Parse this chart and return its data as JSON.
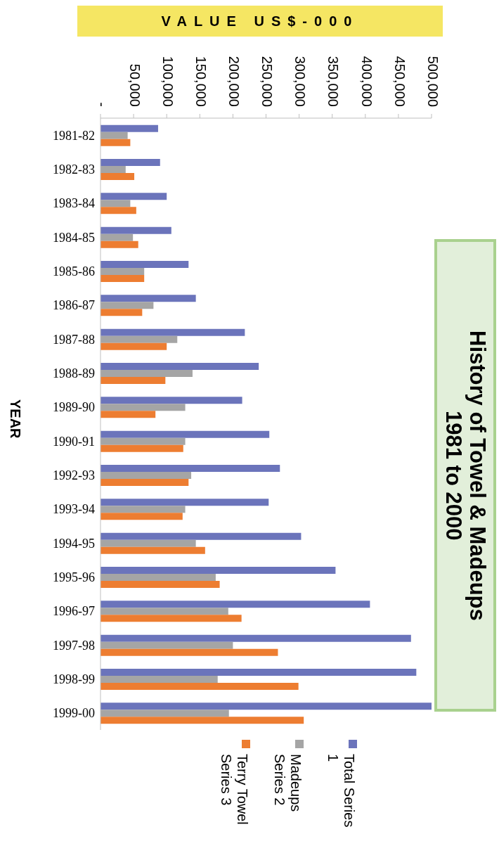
{
  "chart_data": {
    "type": "bar",
    "orientation": "horizontal",
    "title": "History of Towel & Madeups\n1981 to 2000",
    "xlabel": "VALUE US$-000",
    "ylabel": "YEAR",
    "categories": [
      "1981-82",
      "1982-83",
      "1983-84",
      "1984-85",
      "1985-86",
      "1986-87",
      "1987-88",
      "1988-89",
      "1989-90",
      "1990-91",
      "1992-93",
      "1993-94",
      "1994-95",
      "1995-96",
      "1996-97",
      "1997-98",
      "1998-99",
      "1999-00"
    ],
    "series": [
      {
        "name": "Total Series 1",
        "color": "#6b74bb",
        "values": [
          87000,
          90000,
          100000,
          107000,
          133000,
          144000,
          218000,
          239000,
          214000,
          255000,
          271000,
          254000,
          303000,
          355000,
          407000,
          469000,
          477000,
          500000
        ]
      },
      {
        "name": "Madeups Series 2",
        "color": "#a5a5a5",
        "values": [
          41000,
          38000,
          45000,
          49000,
          66000,
          80000,
          116000,
          139000,
          128000,
          128000,
          137000,
          128000,
          144000,
          174000,
          193000,
          200000,
          177000,
          194000
        ]
      },
      {
        "name": "Terry Towel Series 3",
        "color": "#ed7d31",
        "values": [
          45000,
          51000,
          54000,
          57000,
          66000,
          63000,
          100000,
          98000,
          83000,
          125000,
          133000,
          124000,
          158000,
          180000,
          213000,
          268000,
          299000,
          307000
        ]
      }
    ],
    "xlim": [
      0,
      500000
    ],
    "xticks": [
      {
        "value": 0,
        "label": "-"
      },
      {
        "value": 50000,
        "label": "50,000"
      },
      {
        "value": 100000,
        "label": "100,000"
      },
      {
        "value": 150000,
        "label": "150,000"
      },
      {
        "value": 200000,
        "label": "200,000"
      },
      {
        "value": 250000,
        "label": "250,000"
      },
      {
        "value": 300000,
        "label": "300,000"
      },
      {
        "value": 350000,
        "label": "350,000"
      },
      {
        "value": 400000,
        "label": "400,000"
      },
      {
        "value": 450000,
        "label": "450,000"
      },
      {
        "value": 500000,
        "label": "500,000"
      }
    ],
    "legend": "bottom"
  }
}
